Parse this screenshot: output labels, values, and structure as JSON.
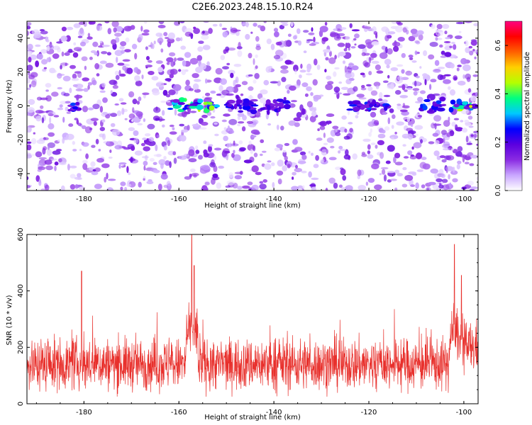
{
  "title": "C2E6.2023.248.15.10.R24",
  "chart_data": [
    {
      "type": "heatmap",
      "title": "C2E6.2023.248.15.10.R24",
      "xlabel": "Height of straight line (km)",
      "ylabel": "Frequency (Hz)",
      "xlim": [
        -192,
        -97
      ],
      "ylim": [
        -50,
        50
      ],
      "xticks": [
        -180,
        -160,
        -140,
        -120,
        -100
      ],
      "yticks": [
        -40,
        -20,
        0,
        20,
        40
      ],
      "colorbar": {
        "label": "Normalized spectral amplitude",
        "range": [
          0.0,
          0.7
        ],
        "ticks": [
          0.0,
          0.2,
          0.4,
          0.6
        ],
        "colors": [
          "#ffffff",
          "#c9a6ff",
          "#8a2be2",
          "#5a00e0",
          "#0000ff",
          "#00c8ff",
          "#00ff80",
          "#b4ff00",
          "#ffd000",
          "#ff6000",
          "#ff0000",
          "#ff0080"
        ]
      },
      "signal_band_hz": 0,
      "bright_segments_km": [
        {
          "from": -183,
          "to": -181,
          "peak": 0.3
        },
        {
          "from": -162,
          "to": -152,
          "peak": 0.45
        },
        {
          "from": -150,
          "to": -137,
          "peak": 0.25
        },
        {
          "from": -124,
          "to": -116,
          "peak": 0.3
        },
        {
          "from": -109,
          "to": -104,
          "peak": 0.3
        },
        {
          "from": -103,
          "to": -97,
          "peak": 0.5
        }
      ]
    },
    {
      "type": "line",
      "title": "",
      "xlabel": "Height of straight line (km)",
      "ylabel": "SNR (10 * v/v)",
      "xlim": [
        -192,
        -97
      ],
      "ylim": [
        0,
        600
      ],
      "xticks": [
        -180,
        -160,
        -140,
        -120,
        -100
      ],
      "yticks": [
        0,
        200,
        400,
        600
      ],
      "color": "#e8302c",
      "baseline_snr": 140,
      "notable_peaks": [
        {
          "x": -180.5,
          "y": 470
        },
        {
          "x": -157.3,
          "y": 600
        },
        {
          "x": -156.8,
          "y": 490
        },
        {
          "x": -102.0,
          "y": 565
        },
        {
          "x": -100.5,
          "y": 455
        }
      ]
    }
  ]
}
